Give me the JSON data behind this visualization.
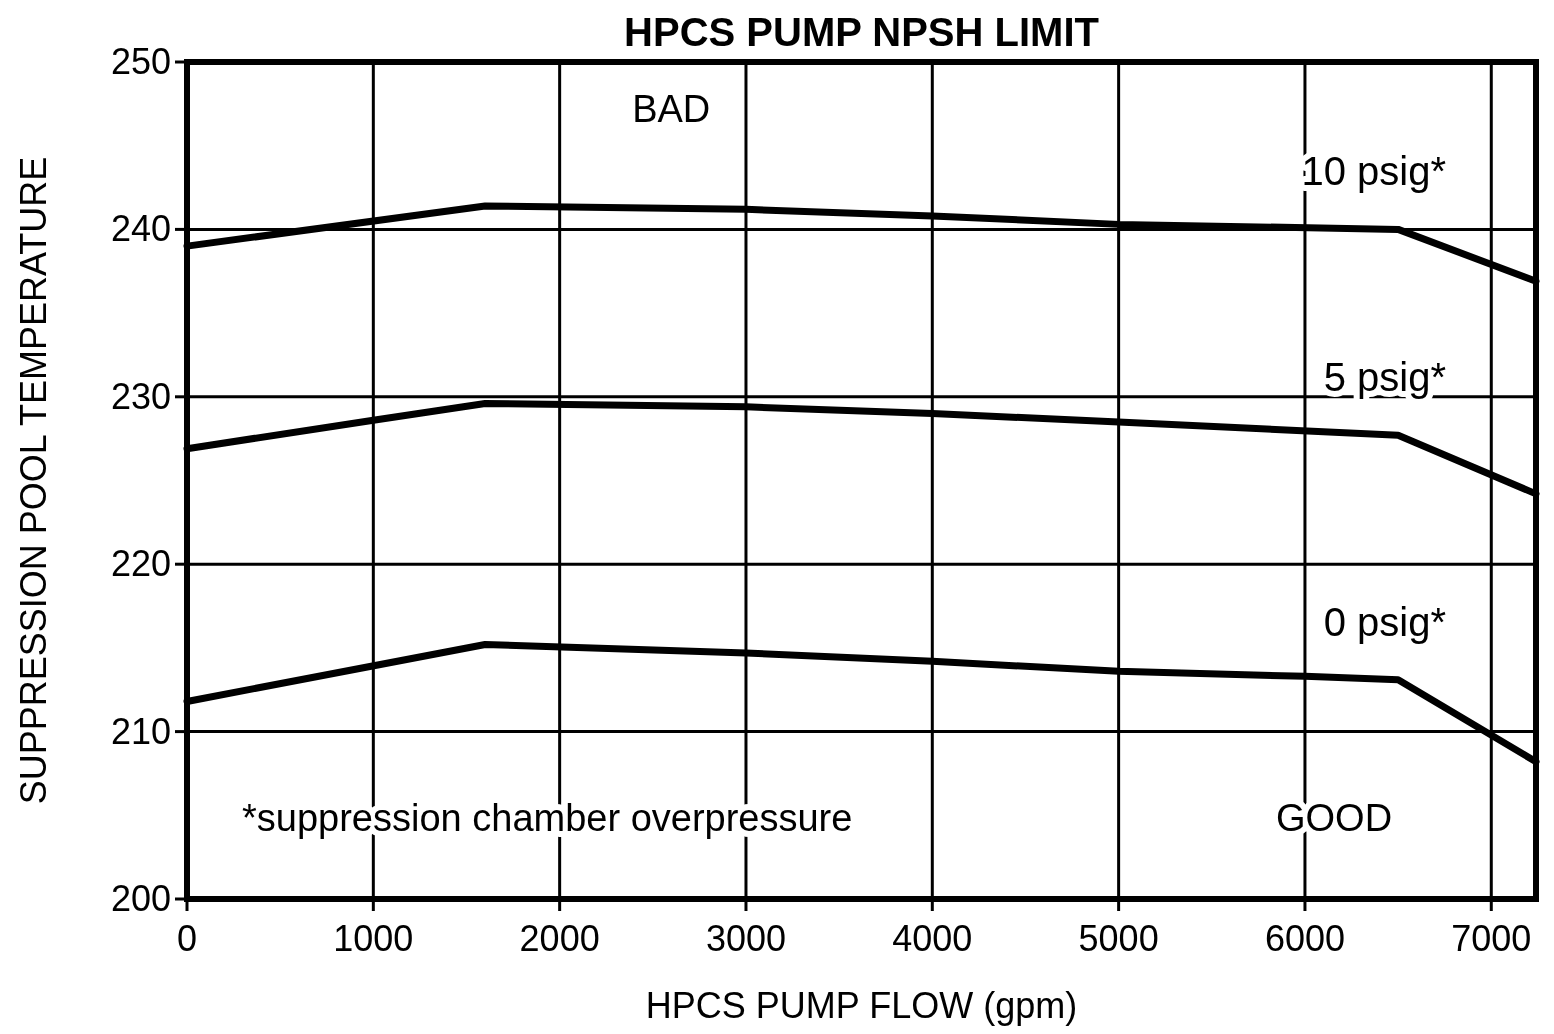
{
  "chart_data": {
    "type": "line",
    "title": "HPCS PUMP NPSH LIMIT",
    "xlabel": "HPCS PUMP FLOW (gpm)",
    "ylabel": "SUPPRESSION POOL TEMPERATURE",
    "xlim": [
      0,
      7240
    ],
    "xticks": [
      0,
      1000,
      2000,
      3000,
      4000,
      5000,
      6000,
      7000
    ],
    "ylim": [
      200,
      250
    ],
    "yticks": [
      200,
      210,
      220,
      230,
      240,
      250
    ],
    "grid": true,
    "legend": false,
    "marker": "none",
    "line_style": "solid",
    "series": [
      {
        "name": "10 psig*",
        "color": "#000000",
        "x": [
          0,
          1600,
          3000,
          4000,
          5000,
          6500,
          7240
        ],
        "values": [
          239,
          241.4,
          241.2,
          240.8,
          240.3,
          240,
          236.9
        ]
      },
      {
        "name": "5 psig*",
        "color": "#000000",
        "x": [
          0,
          1000,
          1600,
          3000,
          4000,
          5000,
          6500,
          7240
        ],
        "values": [
          226.9,
          228.6,
          229.6,
          229.4,
          229,
          228.5,
          227.7,
          224.2
        ]
      },
      {
        "name": "0 psig*",
        "color": "#000000",
        "x": [
          0,
          1600,
          3000,
          4000,
          5000,
          6000,
          6500,
          7240
        ],
        "values": [
          211.8,
          215.2,
          214.7,
          214.2,
          213.6,
          213.3,
          213.1,
          208.2
        ]
      }
    ],
    "annotations": [
      "BAD",
      "GOOD",
      "*suppression chamber overpressure"
    ]
  }
}
